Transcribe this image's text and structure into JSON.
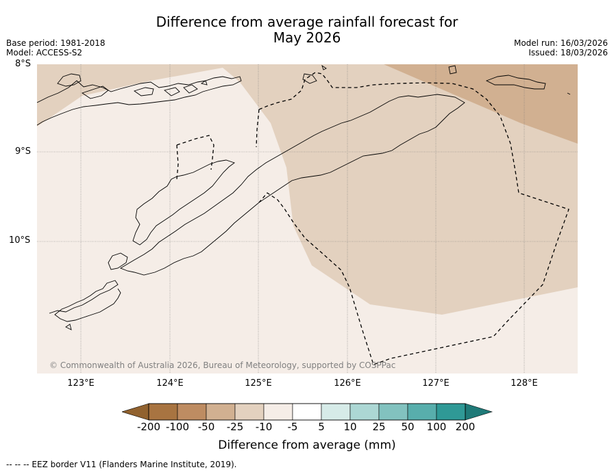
{
  "title": {
    "line1": "Difference from average rainfall forecast for",
    "line2": "May 2026"
  },
  "meta": {
    "base_period": "Base period: 1981-2018",
    "model": "Model: ACCESS-S2",
    "model_run": "Model run: 16/03/2026",
    "issued": "Issued: 18/03/2026"
  },
  "map": {
    "lat_labels": [
      "8°S",
      "9°S",
      "10°S"
    ],
    "lon_labels": [
      "123°E",
      "124°E",
      "125°E",
      "126°E",
      "127°E",
      "128°E"
    ],
    "copyright": "© Commonwealth of Australia 2026, Bureau of Meteorology, supported by COSPPac",
    "colors": {
      "light_tan": "#f5ede7",
      "mid_tan": "#e3d1bf",
      "dark_tan": "#d1b091",
      "coast": "#000000",
      "eez": "#000000"
    }
  },
  "colorbar": {
    "ticks": [
      "-200",
      "-100",
      "-50",
      "-25",
      "-10",
      "-5",
      "5",
      "10",
      "25",
      "50",
      "100",
      "200"
    ],
    "colors": [
      "#a87441",
      "#be8c62",
      "#d1b091",
      "#e3d1bf",
      "#f5ede7",
      "#ffffff",
      "#d6ebe8",
      "#acd7d4",
      "#82c2bf",
      "#58aeac",
      "#2f9996"
    ],
    "under_color": "#91622f",
    "over_color": "#1f7a78",
    "label": "Difference from average (mm)"
  },
  "footer": {
    "eez_legend": "--  --  -- EEZ border V11 (Flanders Marine Institute, 2019)."
  }
}
